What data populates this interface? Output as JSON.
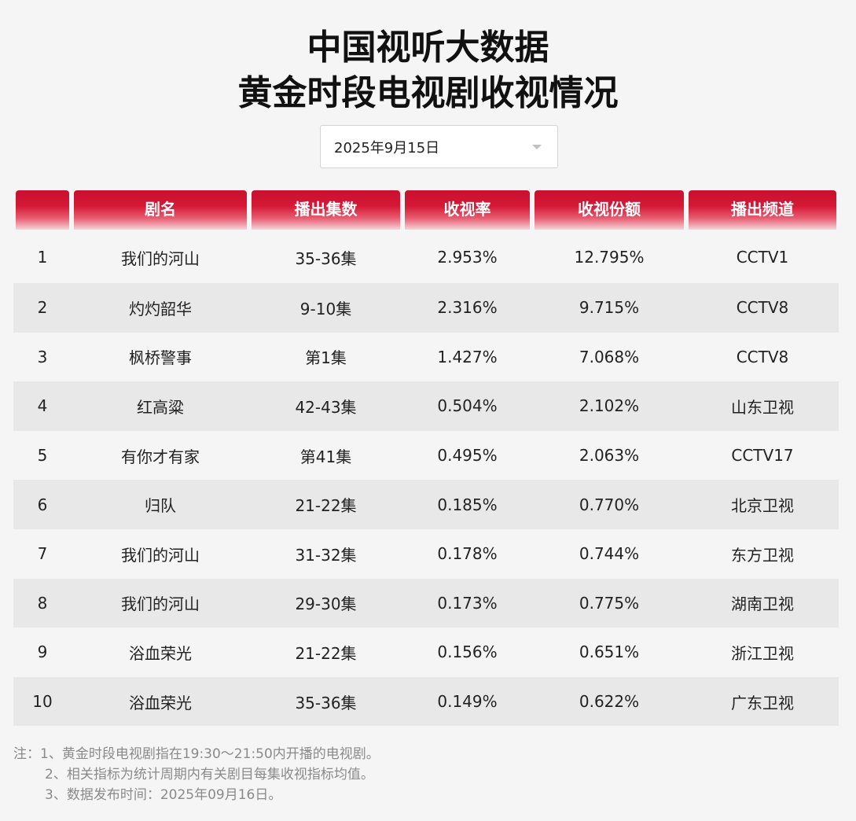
{
  "header": {
    "title_line1": "中国视听大数据",
    "title_line2": "黄金时段电视剧收视情况"
  },
  "date_select": {
    "value": "2025年9月15日"
  },
  "table": {
    "columns": [
      "",
      "剧名",
      "播出集数",
      "收视率",
      "收视份额",
      "播出频道"
    ],
    "rows": [
      {
        "rank": "1",
        "name": "我们的河山",
        "episodes": "35-36集",
        "rating": "2.953%",
        "share": "12.795%",
        "channel": "CCTV1"
      },
      {
        "rank": "2",
        "name": "灼灼韶华",
        "episodes": "9-10集",
        "rating": "2.316%",
        "share": "9.715%",
        "channel": "CCTV8"
      },
      {
        "rank": "3",
        "name": "枫桥警事",
        "episodes": "第1集",
        "rating": "1.427%",
        "share": "7.068%",
        "channel": "CCTV8"
      },
      {
        "rank": "4",
        "name": "红高粱",
        "episodes": "42-43集",
        "rating": "0.504%",
        "share": "2.102%",
        "channel": "山东卫视"
      },
      {
        "rank": "5",
        "name": "有你才有家",
        "episodes": "第41集",
        "rating": "0.495%",
        "share": "2.063%",
        "channel": "CCTV17"
      },
      {
        "rank": "6",
        "name": "归队",
        "episodes": "21-22集",
        "rating": "0.185%",
        "share": "0.770%",
        "channel": "北京卫视"
      },
      {
        "rank": "7",
        "name": "我们的河山",
        "episodes": "31-32集",
        "rating": "0.178%",
        "share": "0.744%",
        "channel": "东方卫视"
      },
      {
        "rank": "8",
        "name": "我们的河山",
        "episodes": "29-30集",
        "rating": "0.173%",
        "share": "0.775%",
        "channel": "湖南卫视"
      },
      {
        "rank": "9",
        "name": "浴血荣光",
        "episodes": "21-22集",
        "rating": "0.156%",
        "share": "0.651%",
        "channel": "浙江卫视"
      },
      {
        "rank": "10",
        "name": "浴血荣光",
        "episodes": "35-36集",
        "rating": "0.149%",
        "share": "0.622%",
        "channel": "广东卫视"
      }
    ]
  },
  "notes": {
    "line1": "注：1、黄金时段电视剧指在19:30～21:50内开播的电视剧。",
    "line2": "2、相关指标为统计周期内有关剧目每集收视指标均值。",
    "line3": "3、数据发布时间：2025年09月16日。"
  },
  "colors": {
    "header_red": "#c8102e",
    "stripe_gray": "#e8e8e8",
    "background": "#f5f5f5"
  }
}
